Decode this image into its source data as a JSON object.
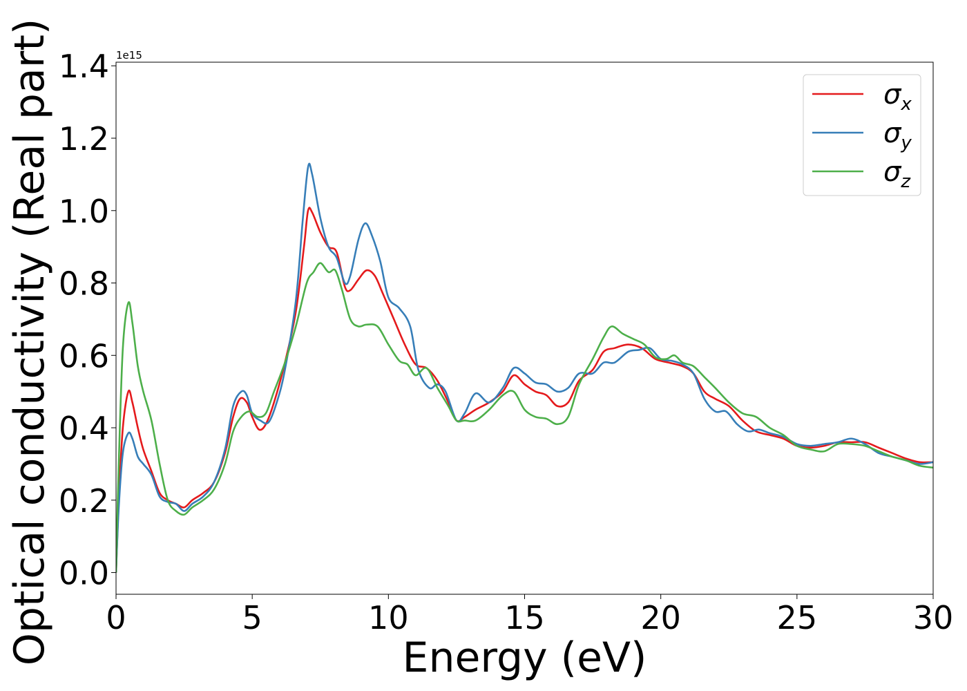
{
  "chart_data": {
    "type": "line",
    "xlabel": "Energy (eV)",
    "ylabel": "Optical conductivity (Real part)",
    "y_offset_label": "1e15",
    "xlim": [
      0,
      30
    ],
    "ylim": [
      -0.06,
      1.41
    ],
    "xticks": [
      0,
      5,
      10,
      15,
      20,
      25,
      30
    ],
    "yticks": [
      0.0,
      0.2,
      0.4,
      0.6,
      0.8,
      1.0,
      1.2,
      1.4
    ],
    "xtick_labels": [
      "0",
      "5",
      "10",
      "15",
      "20",
      "25",
      "30"
    ],
    "ytick_labels": [
      "0.0",
      "0.2",
      "0.4",
      "0.6",
      "0.8",
      "1.0",
      "1.2",
      "1.4"
    ],
    "grid": false,
    "legend": "top-right",
    "series": [
      {
        "name": "σ",
        "sub": "x",
        "color": "#e41a1c",
        "points": [
          [
            0,
            0.0
          ],
          [
            0.1,
            0.2
          ],
          [
            0.25,
            0.4
          ],
          [
            0.45,
            0.5
          ],
          [
            0.6,
            0.47
          ],
          [
            0.8,
            0.4
          ],
          [
            1.0,
            0.34
          ],
          [
            1.3,
            0.28
          ],
          [
            1.6,
            0.22
          ],
          [
            1.9,
            0.2
          ],
          [
            2.2,
            0.19
          ],
          [
            2.5,
            0.18
          ],
          [
            2.8,
            0.2
          ],
          [
            3.2,
            0.22
          ],
          [
            3.6,
            0.25
          ],
          [
            4.0,
            0.33
          ],
          [
            4.3,
            0.43
          ],
          [
            4.55,
            0.48
          ],
          [
            4.8,
            0.47
          ],
          [
            5.0,
            0.43
          ],
          [
            5.25,
            0.395
          ],
          [
            5.5,
            0.41
          ],
          [
            5.8,
            0.47
          ],
          [
            6.2,
            0.58
          ],
          [
            6.6,
            0.72
          ],
          [
            6.9,
            0.9
          ],
          [
            7.05,
            1.0
          ],
          [
            7.2,
            0.995
          ],
          [
            7.5,
            0.94
          ],
          [
            7.8,
            0.9
          ],
          [
            8.1,
            0.885
          ],
          [
            8.4,
            0.79
          ],
          [
            8.6,
            0.78
          ],
          [
            8.9,
            0.81
          ],
          [
            9.2,
            0.835
          ],
          [
            9.5,
            0.82
          ],
          [
            9.8,
            0.77
          ],
          [
            10.2,
            0.7
          ],
          [
            10.6,
            0.63
          ],
          [
            11.0,
            0.575
          ],
          [
            11.4,
            0.565
          ],
          [
            11.8,
            0.53
          ],
          [
            12.2,
            0.47
          ],
          [
            12.5,
            0.42
          ],
          [
            12.8,
            0.43
          ],
          [
            13.2,
            0.45
          ],
          [
            13.7,
            0.47
          ],
          [
            14.2,
            0.5
          ],
          [
            14.6,
            0.545
          ],
          [
            15.0,
            0.52
          ],
          [
            15.4,
            0.5
          ],
          [
            15.8,
            0.49
          ],
          [
            16.2,
            0.46
          ],
          [
            16.6,
            0.47
          ],
          [
            17.0,
            0.53
          ],
          [
            17.5,
            0.56
          ],
          [
            17.9,
            0.61
          ],
          [
            18.3,
            0.62
          ],
          [
            18.8,
            0.63
          ],
          [
            19.3,
            0.62
          ],
          [
            19.8,
            0.59
          ],
          [
            20.3,
            0.58
          ],
          [
            20.8,
            0.57
          ],
          [
            21.2,
            0.55
          ],
          [
            21.6,
            0.5
          ],
          [
            22.0,
            0.48
          ],
          [
            22.5,
            0.46
          ],
          [
            23.0,
            0.42
          ],
          [
            23.5,
            0.39
          ],
          [
            24.0,
            0.38
          ],
          [
            24.5,
            0.37
          ],
          [
            25.0,
            0.35
          ],
          [
            25.5,
            0.345
          ],
          [
            26.0,
            0.35
          ],
          [
            26.5,
            0.36
          ],
          [
            27.0,
            0.36
          ],
          [
            27.5,
            0.36
          ],
          [
            28.0,
            0.345
          ],
          [
            28.5,
            0.33
          ],
          [
            29.0,
            0.315
          ],
          [
            29.5,
            0.305
          ],
          [
            30.0,
            0.305
          ]
        ]
      },
      {
        "name": "σ",
        "sub": "y",
        "color": "#377eb8",
        "points": [
          [
            0,
            0.0
          ],
          [
            0.1,
            0.18
          ],
          [
            0.25,
            0.33
          ],
          [
            0.45,
            0.385
          ],
          [
            0.6,
            0.37
          ],
          [
            0.8,
            0.32
          ],
          [
            1.0,
            0.3
          ],
          [
            1.3,
            0.27
          ],
          [
            1.6,
            0.21
          ],
          [
            1.9,
            0.195
          ],
          [
            2.2,
            0.19
          ],
          [
            2.5,
            0.17
          ],
          [
            2.8,
            0.19
          ],
          [
            3.2,
            0.21
          ],
          [
            3.6,
            0.25
          ],
          [
            4.0,
            0.34
          ],
          [
            4.3,
            0.46
          ],
          [
            4.6,
            0.5
          ],
          [
            4.8,
            0.49
          ],
          [
            5.0,
            0.44
          ],
          [
            5.3,
            0.42
          ],
          [
            5.6,
            0.415
          ],
          [
            5.9,
            0.47
          ],
          [
            6.2,
            0.56
          ],
          [
            6.6,
            0.75
          ],
          [
            6.85,
            0.97
          ],
          [
            7.05,
            1.12
          ],
          [
            7.2,
            1.1
          ],
          [
            7.5,
            0.98
          ],
          [
            7.8,
            0.9
          ],
          [
            8.1,
            0.87
          ],
          [
            8.4,
            0.8
          ],
          [
            8.6,
            0.82
          ],
          [
            8.9,
            0.92
          ],
          [
            9.15,
            0.965
          ],
          [
            9.4,
            0.93
          ],
          [
            9.7,
            0.86
          ],
          [
            10.0,
            0.76
          ],
          [
            10.4,
            0.73
          ],
          [
            10.8,
            0.68
          ],
          [
            11.1,
            0.56
          ],
          [
            11.5,
            0.51
          ],
          [
            11.8,
            0.52
          ],
          [
            12.1,
            0.5
          ],
          [
            12.5,
            0.42
          ],
          [
            12.8,
            0.44
          ],
          [
            13.2,
            0.495
          ],
          [
            13.7,
            0.47
          ],
          [
            14.2,
            0.51
          ],
          [
            14.6,
            0.565
          ],
          [
            15.0,
            0.55
          ],
          [
            15.4,
            0.525
          ],
          [
            15.8,
            0.52
          ],
          [
            16.2,
            0.5
          ],
          [
            16.6,
            0.51
          ],
          [
            17.0,
            0.55
          ],
          [
            17.5,
            0.55
          ],
          [
            17.9,
            0.58
          ],
          [
            18.3,
            0.58
          ],
          [
            18.8,
            0.61
          ],
          [
            19.2,
            0.615
          ],
          [
            19.6,
            0.62
          ],
          [
            20.0,
            0.59
          ],
          [
            20.4,
            0.585
          ],
          [
            20.8,
            0.575
          ],
          [
            21.2,
            0.55
          ],
          [
            21.6,
            0.48
          ],
          [
            22.0,
            0.445
          ],
          [
            22.4,
            0.445
          ],
          [
            22.8,
            0.41
          ],
          [
            23.2,
            0.39
          ],
          [
            23.6,
            0.395
          ],
          [
            24.0,
            0.385
          ],
          [
            24.5,
            0.375
          ],
          [
            25.0,
            0.355
          ],
          [
            25.5,
            0.35
          ],
          [
            26.0,
            0.355
          ],
          [
            26.5,
            0.36
          ],
          [
            27.0,
            0.37
          ],
          [
            27.5,
            0.355
          ],
          [
            28.0,
            0.33
          ],
          [
            28.5,
            0.32
          ],
          [
            29.0,
            0.31
          ],
          [
            29.5,
            0.3
          ],
          [
            30.0,
            0.305
          ]
        ]
      },
      {
        "name": "σ",
        "sub": "z",
        "color": "#4daf4a",
        "points": [
          [
            0,
            0.0
          ],
          [
            0.1,
            0.3
          ],
          [
            0.25,
            0.62
          ],
          [
            0.45,
            0.745
          ],
          [
            0.6,
            0.69
          ],
          [
            0.8,
            0.57
          ],
          [
            1.0,
            0.5
          ],
          [
            1.3,
            0.42
          ],
          [
            1.6,
            0.3
          ],
          [
            1.9,
            0.2
          ],
          [
            2.2,
            0.17
          ],
          [
            2.5,
            0.16
          ],
          [
            2.8,
            0.18
          ],
          [
            3.2,
            0.2
          ],
          [
            3.6,
            0.23
          ],
          [
            4.0,
            0.3
          ],
          [
            4.3,
            0.39
          ],
          [
            4.6,
            0.43
          ],
          [
            4.9,
            0.445
          ],
          [
            5.2,
            0.43
          ],
          [
            5.5,
            0.44
          ],
          [
            5.8,
            0.5
          ],
          [
            6.2,
            0.58
          ],
          [
            6.6,
            0.68
          ],
          [
            7.0,
            0.8
          ],
          [
            7.25,
            0.83
          ],
          [
            7.5,
            0.855
          ],
          [
            7.8,
            0.83
          ],
          [
            8.05,
            0.835
          ],
          [
            8.3,
            0.78
          ],
          [
            8.6,
            0.7
          ],
          [
            8.9,
            0.68
          ],
          [
            9.2,
            0.685
          ],
          [
            9.6,
            0.68
          ],
          [
            10.0,
            0.63
          ],
          [
            10.4,
            0.585
          ],
          [
            10.7,
            0.575
          ],
          [
            11.0,
            0.545
          ],
          [
            11.4,
            0.565
          ],
          [
            11.8,
            0.51
          ],
          [
            12.2,
            0.46
          ],
          [
            12.5,
            0.42
          ],
          [
            12.8,
            0.42
          ],
          [
            13.2,
            0.42
          ],
          [
            13.7,
            0.45
          ],
          [
            14.2,
            0.49
          ],
          [
            14.6,
            0.5
          ],
          [
            15.0,
            0.45
          ],
          [
            15.4,
            0.43
          ],
          [
            15.8,
            0.425
          ],
          [
            16.2,
            0.41
          ],
          [
            16.6,
            0.43
          ],
          [
            17.0,
            0.52
          ],
          [
            17.5,
            0.59
          ],
          [
            17.9,
            0.65
          ],
          [
            18.2,
            0.68
          ],
          [
            18.6,
            0.66
          ],
          [
            19.0,
            0.645
          ],
          [
            19.4,
            0.63
          ],
          [
            19.8,
            0.595
          ],
          [
            20.2,
            0.59
          ],
          [
            20.5,
            0.6
          ],
          [
            20.8,
            0.58
          ],
          [
            21.2,
            0.57
          ],
          [
            21.6,
            0.54
          ],
          [
            22.0,
            0.51
          ],
          [
            22.5,
            0.47
          ],
          [
            23.0,
            0.44
          ],
          [
            23.5,
            0.43
          ],
          [
            24.0,
            0.4
          ],
          [
            24.5,
            0.38
          ],
          [
            25.0,
            0.35
          ],
          [
            25.5,
            0.34
          ],
          [
            26.0,
            0.335
          ],
          [
            26.5,
            0.355
          ],
          [
            27.0,
            0.355
          ],
          [
            27.5,
            0.35
          ],
          [
            28.0,
            0.335
          ],
          [
            28.5,
            0.32
          ],
          [
            29.0,
            0.31
          ],
          [
            29.5,
            0.295
          ],
          [
            30.0,
            0.29
          ]
        ]
      }
    ]
  }
}
